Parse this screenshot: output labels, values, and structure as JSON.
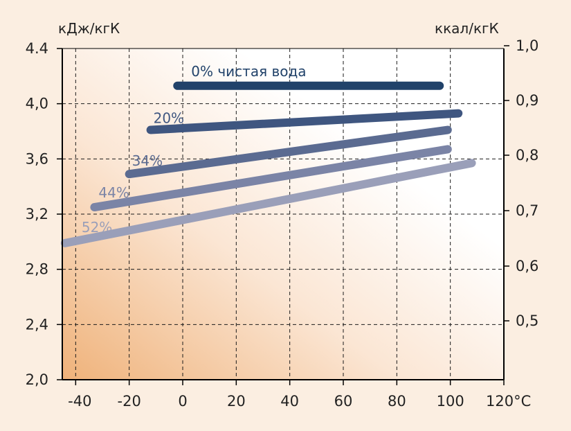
{
  "chart_data": {
    "type": "line",
    "y_left_unit": "кДж/кгК",
    "y_right_unit": "ккал/кгК",
    "x_ticks": [
      "-40",
      "-20",
      "0",
      "20",
      "40",
      "60",
      "80",
      "100",
      "120°C"
    ],
    "x_tick_values": [
      -40,
      -20,
      0,
      20,
      40,
      60,
      80,
      100,
      120
    ],
    "y_left_ticks": [
      "2,0",
      "2,4",
      "2,8",
      "3,2",
      "3,6",
      "4,0",
      "4.4"
    ],
    "y_left_tick_values": [
      2.0,
      2.4,
      2.8,
      3.2,
      3.6,
      4.0,
      4.4
    ],
    "y_right_ticks": [
      "0,5",
      "0,6",
      "0,7",
      "0,8",
      "0,9",
      "1,0"
    ],
    "y_right_tick_values": [
      0.5,
      0.6,
      0.7,
      0.8,
      0.9,
      1.0
    ],
    "xlim": [
      -45,
      120
    ],
    "ylim": [
      2.0,
      4.4
    ],
    "grid": true,
    "series": [
      {
        "name": "0% чистая вода",
        "color": "#21426a",
        "x": [
          -2,
          96
        ],
        "y": [
          4.13,
          4.13
        ]
      },
      {
        "name": "20%",
        "color": "#3f5680",
        "x": [
          -12,
          103
        ],
        "y": [
          3.81,
          3.93
        ]
      },
      {
        "name": "34%",
        "color": "#5b6b91",
        "x": [
          -20,
          99
        ],
        "y": [
          3.49,
          3.81
        ]
      },
      {
        "name": "44%",
        "color": "#7b84a6",
        "x": [
          -33,
          99
        ],
        "y": [
          3.25,
          3.67
        ]
      },
      {
        "name": "52%",
        "color": "#9a9fb9",
        "x": [
          -44,
          108
        ],
        "y": [
          2.99,
          3.57
        ]
      }
    ]
  }
}
